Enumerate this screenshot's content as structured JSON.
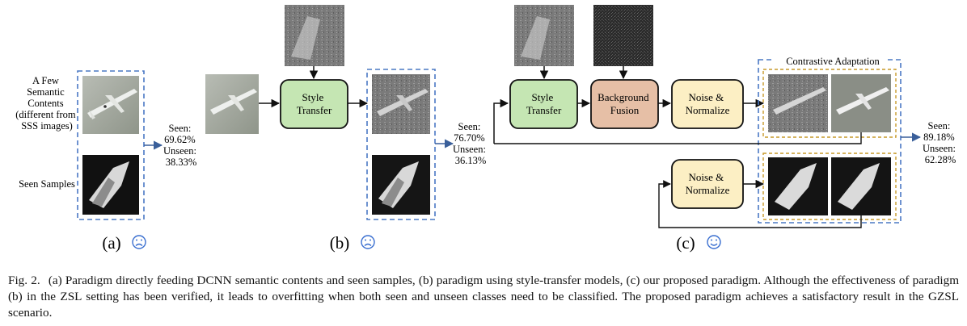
{
  "panel_a": {
    "semantic_label": [
      "A Few",
      "Semantic",
      "Contents",
      "(different from",
      "SSS images)"
    ],
    "seen_samples_label": "Seen Samples",
    "metrics": [
      "Seen:",
      "69.62%",
      "Unseen:",
      "38.33%"
    ],
    "panel_label": "(a)",
    "face": "sad"
  },
  "panel_b": {
    "style_transfer": [
      "Style",
      "Transfer"
    ],
    "metrics": [
      "Seen:",
      "76.70%",
      "Unseen:",
      "36.13%"
    ],
    "panel_label": "(b)",
    "face": "sad"
  },
  "panel_c": {
    "style_transfer": [
      "Style",
      "Transfer"
    ],
    "background_fusion": [
      "Background",
      "Fusion"
    ],
    "noise_normalize": [
      "Noise &",
      "Normalize"
    ],
    "contrastive_adaptation": "Contrastive Adaptation",
    "metrics": [
      "Seen:",
      "89.18%",
      "Unseen:",
      "62.28%"
    ],
    "panel_label": "(c)",
    "face": "smile"
  },
  "caption": {
    "label": "Fig. 2.",
    "text": "(a) Paradigm directly feeding DCNN semantic contents and seen samples, (b) paradigm using style-transfer models, (c) our proposed paradigm. Although the effectiveness of paradigm (b) in the ZSL setting has been verified, it leads to overfitting when both seen and unseen classes need to be classified. The proposed paradigm achieves a satisfactory result in the GZSL scenario."
  },
  "colors": {
    "dashed_blue": "#4a78c4",
    "arrow_blue": "#3a5f9a",
    "style_green": "#c5e6b3",
    "fusion_brown": "#e6bfa6",
    "noise_yellow": "#fcefc4",
    "inner_dash": "#c79a2a"
  }
}
